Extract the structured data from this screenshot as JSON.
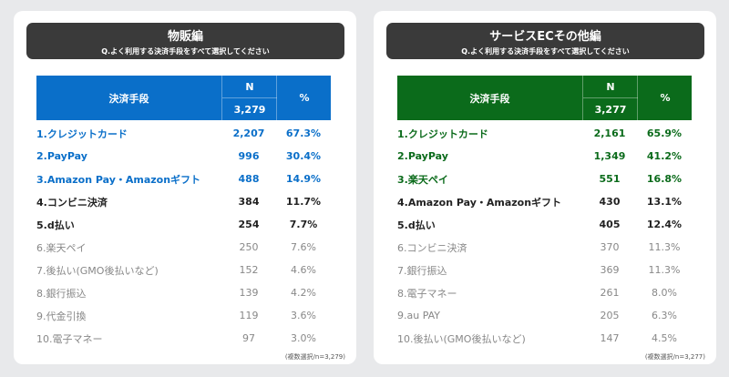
{
  "panels": [
    {
      "title": "物販編",
      "question": "Q.よく利用する決済手段をすべて選択してください",
      "color": "#0a6fc9",
      "table": {
        "col_method": "決済手段",
        "col_n": "N",
        "n_total": "3,279",
        "col_pct": "%"
      },
      "rows": [
        {
          "label": "1.クレジットカード",
          "n": "2,207",
          "pct": "67.3%",
          "style": "accent"
        },
        {
          "label": "2.PayPay",
          "n": "996",
          "pct": "30.4%",
          "style": "accent"
        },
        {
          "label": "3.Amazon Pay・Amazonギフト",
          "n": "488",
          "pct": "14.9%",
          "style": "accent"
        },
        {
          "label": "4.コンビニ決済",
          "n": "384",
          "pct": "11.7%",
          "style": "bold"
        },
        {
          "label": "5.d払い",
          "n": "254",
          "pct": "7.7%",
          "style": "bold"
        },
        {
          "label": "6.楽天ペイ",
          "n": "250",
          "pct": "7.6%",
          "style": "muted"
        },
        {
          "label": "7.後払い(GMO後払いなど)",
          "n": "152",
          "pct": "4.6%",
          "style": "muted"
        },
        {
          "label": "8.銀行振込",
          "n": "139",
          "pct": "4.2%",
          "style": "muted"
        },
        {
          "label": "9.代金引換",
          "n": "119",
          "pct": "3.6%",
          "style": "muted"
        },
        {
          "label": "10.電子マネー",
          "n": "97",
          "pct": "3.0%",
          "style": "muted"
        }
      ],
      "note": "(複数選択/n=3,279)"
    },
    {
      "title": "サービスECその他編",
      "question": "Q.よく利用する決済手段をすべて選択してください",
      "color": "#0b6b1b",
      "table": {
        "col_method": "決済手段",
        "col_n": "N",
        "n_total": "3,277",
        "col_pct": "%"
      },
      "rows": [
        {
          "label": "1.クレジットカード",
          "n": "2,161",
          "pct": "65.9%",
          "style": "accent"
        },
        {
          "label": "2.PayPay",
          "n": "1,349",
          "pct": "41.2%",
          "style": "accent"
        },
        {
          "label": "3.楽天ペイ",
          "n": "551",
          "pct": "16.8%",
          "style": "accent"
        },
        {
          "label": "4.Amazon Pay・Amazonギフト",
          "n": "430",
          "pct": "13.1%",
          "style": "bold"
        },
        {
          "label": "5.d払い",
          "n": "405",
          "pct": "12.4%",
          "style": "bold"
        },
        {
          "label": "6.コンビニ決済",
          "n": "370",
          "pct": "11.3%",
          "style": "muted"
        },
        {
          "label": "7.銀行振込",
          "n": "369",
          "pct": "11.3%",
          "style": "muted"
        },
        {
          "label": "8.電子マネー",
          "n": "261",
          "pct": "8.0%",
          "style": "muted"
        },
        {
          "label": "9.au PAY",
          "n": "205",
          "pct": "6.3%",
          "style": "muted"
        },
        {
          "label": "10.後払い(GMO後払いなど)",
          "n": "147",
          "pct": "4.5%",
          "style": "muted"
        }
      ],
      "note": "(複数選択/n=3,277)"
    }
  ]
}
